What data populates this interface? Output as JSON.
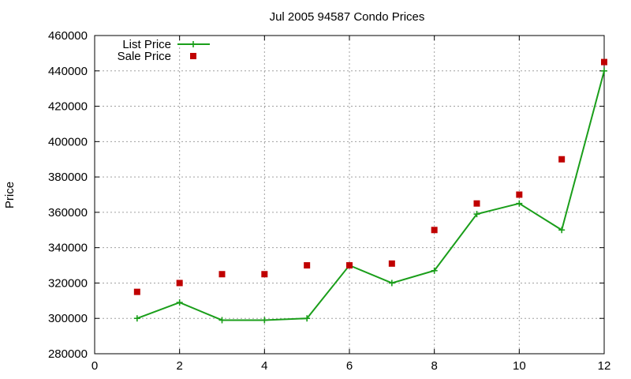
{
  "chart_data": {
    "type": "line",
    "title": "Jul 2005 94587 Condo Prices",
    "xlabel": "",
    "ylabel": "Price",
    "xlim": [
      0,
      12
    ],
    "ylim": [
      280000,
      460000
    ],
    "xticks": [
      0,
      2,
      4,
      6,
      8,
      10,
      12
    ],
    "yticks": [
      280000,
      300000,
      320000,
      340000,
      360000,
      380000,
      400000,
      420000,
      440000,
      460000
    ],
    "grid": true,
    "legend_position": "top-left",
    "series": [
      {
        "name": "List Price",
        "style": "line-with-plus-markers",
        "color": "#1a9e1a",
        "x": [
          1,
          2,
          3,
          4,
          5,
          6,
          7,
          8,
          9,
          10,
          11,
          12
        ],
        "values": [
          300000,
          309000,
          299000,
          299000,
          300000,
          330000,
          320000,
          327000,
          359000,
          365000,
          350000,
          440000
        ]
      },
      {
        "name": "Sale Price",
        "style": "square-markers",
        "color": "#c00000",
        "x": [
          1,
          2,
          3,
          4,
          5,
          6,
          7,
          8,
          9,
          10,
          11,
          12
        ],
        "values": [
          315000,
          320000,
          325000,
          325000,
          330000,
          330000,
          331000,
          350000,
          365000,
          370000,
          390000,
          445000
        ]
      }
    ]
  }
}
